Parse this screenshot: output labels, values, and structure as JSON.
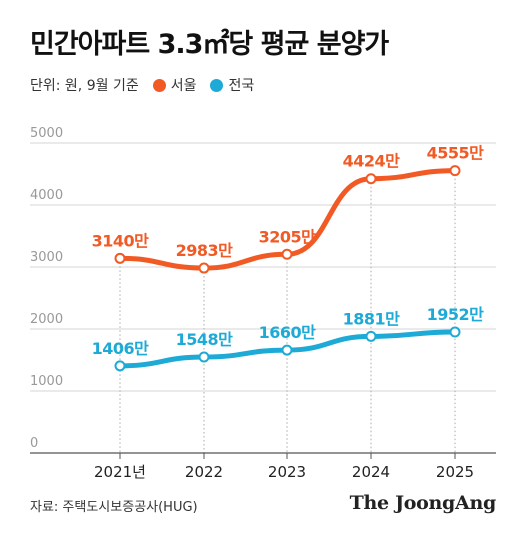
{
  "header": {
    "title": "민간아파트 3.3㎡당 평균 분양가",
    "unit_note": "단위: 원, 9월 기준"
  },
  "footer": {
    "source": "자료: 주택도시보증공사(HUG)",
    "logo_text": "The JoongAng"
  },
  "chart_data": {
    "type": "line",
    "categories": [
      "2021년",
      "2022",
      "2023",
      "2024",
      "2025"
    ],
    "x": [
      2021,
      2022,
      2023,
      2024,
      2025
    ],
    "ylim": [
      0,
      5000
    ],
    "yticks": [
      0,
      1000,
      2000,
      3000,
      4000,
      5000
    ],
    "grid": true,
    "legend_position": "top-left",
    "series": [
      {
        "name": "서울",
        "color": "#f15a24",
        "values": [
          3140,
          2983,
          3205,
          4424,
          4555
        ],
        "labels": [
          "3140만",
          "2983만",
          "3205만",
          "4424만",
          "4555만"
        ]
      },
      {
        "name": "전국",
        "color": "#1eaad6",
        "values": [
          1406,
          1548,
          1660,
          1881,
          1952
        ],
        "labels": [
          "1406만",
          "1548만",
          "1660만",
          "1881만",
          "1952만"
        ]
      }
    ]
  }
}
